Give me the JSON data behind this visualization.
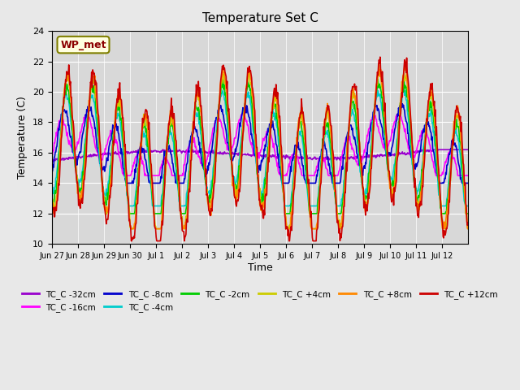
{
  "title": "Temperature Set C",
  "xlabel": "Time",
  "ylabel": "Temperature (C)",
  "ylim": [
    10,
    24
  ],
  "xlim": [
    0,
    16
  ],
  "background_color": "#e8e8e8",
  "plot_bg_color": "#d8d8d8",
  "series_colors": {
    "TC_C -32cm": "#9900cc",
    "TC_C -16cm": "#ff00ff",
    "TC_C -8cm": "#0000cc",
    "TC_C -4cm": "#00cccc",
    "TC_C -2cm": "#00cc00",
    "TC_C +4cm": "#cccc00",
    "TC_C +8cm": "#ff8800",
    "TC_C +12cm": "#cc0000"
  },
  "series_order": [
    "TC_C -32cm",
    "TC_C -16cm",
    "TC_C -8cm",
    "TC_C -4cm",
    "TC_C -2cm",
    "TC_C +4cm",
    "TC_C +8cm",
    "TC_C +12cm"
  ],
  "xtick_labels": [
    "Jun 27",
    "Jun 28",
    "Jun 29",
    "Jun 30",
    "Jul 1",
    "Jul 2",
    "Jul 3",
    "Jul 4",
    "Jul 5",
    "Jul 6",
    "Jul 7",
    "Jul 8",
    "Jul 9",
    "Jul 10",
    "Jul 11",
    "Jul 12"
  ],
  "xtick_positions": [
    0,
    1,
    2,
    3,
    4,
    5,
    6,
    7,
    8,
    9,
    10,
    11,
    12,
    13,
    14,
    15
  ],
  "wp_met_label": "WP_met",
  "legend_ncol": 6
}
